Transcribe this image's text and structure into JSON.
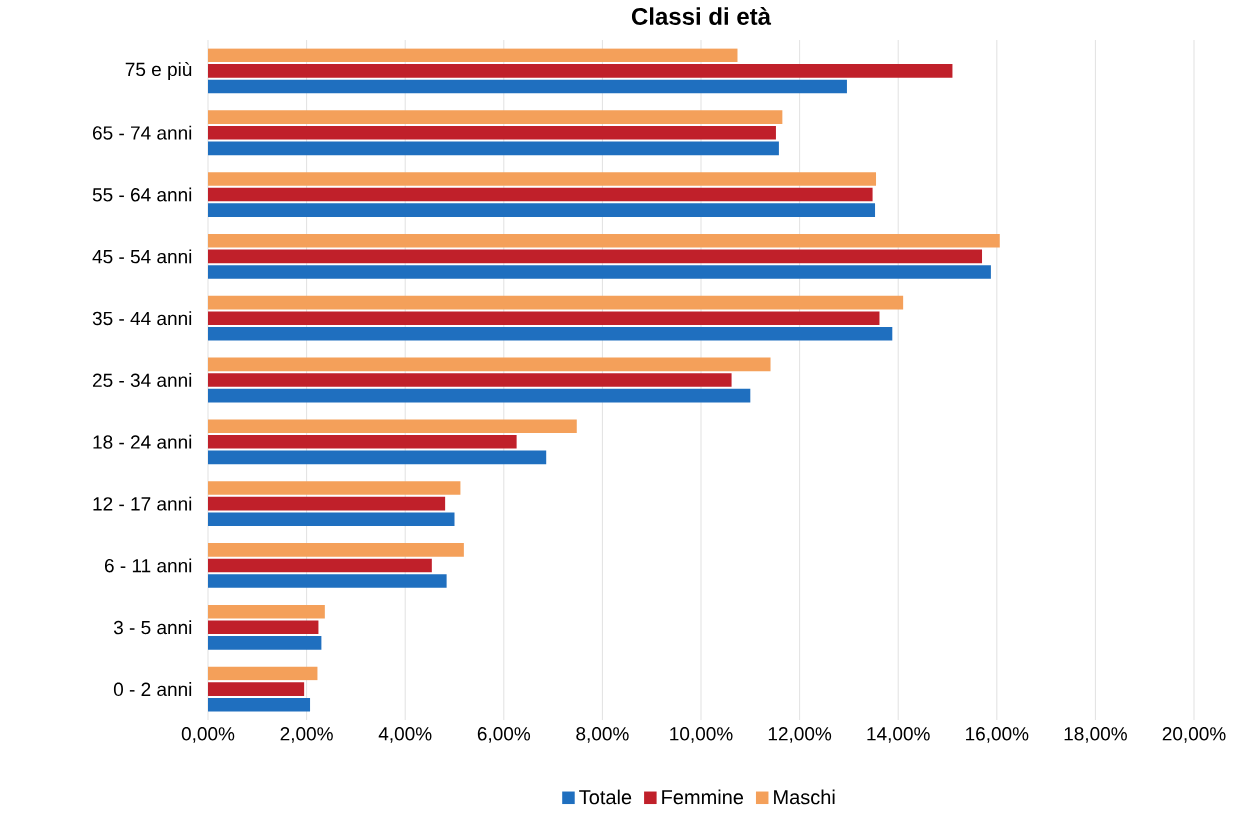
{
  "chart_data": {
    "type": "bar",
    "orientation": "horizontal",
    "title": "Classi di età",
    "categories": [
      "75 e più",
      "65 - 74 anni",
      "55 - 64 anni",
      "45 - 54 anni",
      "35 - 44 anni",
      "25 - 34 anni",
      "18 - 24 anni",
      "12 - 17 anni",
      "6 - 11 anni",
      "3 - 5 anni",
      "0 - 2 anni"
    ],
    "series": [
      {
        "name": "Totale",
        "color": "#1f6fbf",
        "values": [
          12.96,
          11.58,
          13.53,
          15.88,
          13.88,
          11.0,
          6.86,
          5.0,
          4.84,
          2.3,
          2.07
        ]
      },
      {
        "name": "Femmine",
        "color": "#c0202a",
        "values": [
          15.1,
          11.52,
          13.48,
          15.7,
          13.62,
          10.62,
          6.26,
          4.81,
          4.54,
          2.24,
          1.95
        ]
      },
      {
        "name": "Maschi",
        "color": "#f4a05a",
        "values": [
          10.74,
          11.65,
          13.55,
          16.06,
          14.1,
          11.41,
          7.48,
          5.12,
          5.19,
          2.37,
          2.22
        ]
      }
    ],
    "xlim": [
      0,
      20
    ],
    "xticks": [
      {
        "value": 0,
        "label": "0,00%"
      },
      {
        "value": 2,
        "label": "2,00%"
      },
      {
        "value": 4,
        "label": "4,00%"
      },
      {
        "value": 6,
        "label": "6,00%"
      },
      {
        "value": 8,
        "label": "8,00%"
      },
      {
        "value": 10,
        "label": "10,00%"
      },
      {
        "value": 12,
        "label": "12,00%"
      },
      {
        "value": 14,
        "label": "14,00%"
      },
      {
        "value": 16,
        "label": "16,00%"
      },
      {
        "value": 18,
        "label": "18,00%"
      },
      {
        "value": 20,
        "label": "20,00%"
      }
    ],
    "grid": "x",
    "legend": "bottom"
  }
}
